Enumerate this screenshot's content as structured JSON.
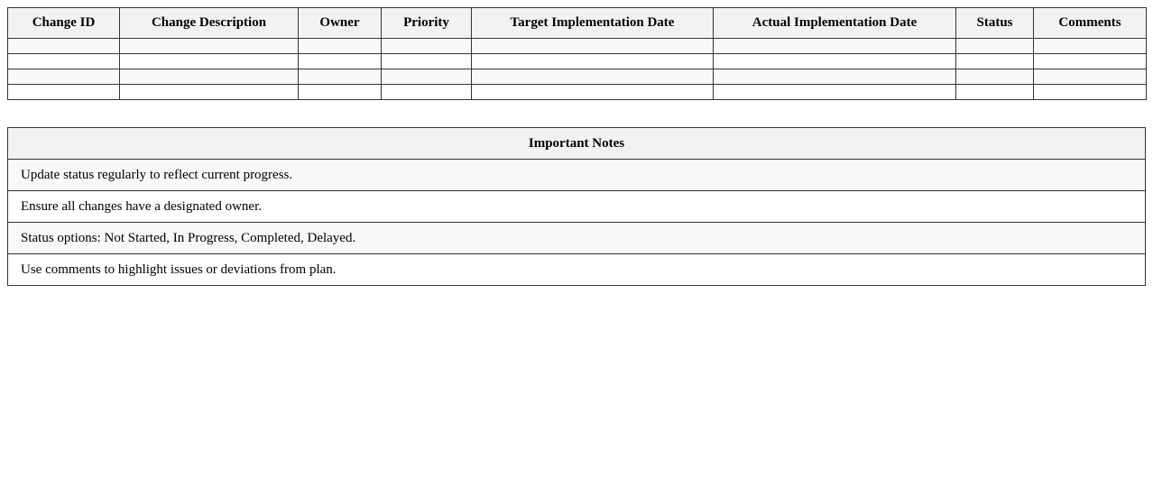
{
  "tracker": {
    "columns": [
      "Change ID",
      "Change Description",
      "Owner",
      "Priority",
      "Target Implementation Date",
      "Actual Implementation Date",
      "Status",
      "Comments"
    ],
    "rows": [
      [
        "",
        "",
        "",
        "",
        "",
        "",
        "",
        ""
      ],
      [
        "",
        "",
        "",
        "",
        "",
        "",
        "",
        ""
      ],
      [
        "",
        "",
        "",
        "",
        "",
        "",
        "",
        ""
      ],
      [
        "",
        "",
        "",
        "",
        "",
        "",
        "",
        ""
      ]
    ]
  },
  "notes": {
    "title": "Important Notes",
    "items": [
      "Update status regularly to reflect current progress.",
      "Ensure all changes have a designated owner.",
      "Status options: Not Started, In Progress, Completed, Delayed.",
      "Use comments to highlight issues or deviations from plan."
    ]
  }
}
